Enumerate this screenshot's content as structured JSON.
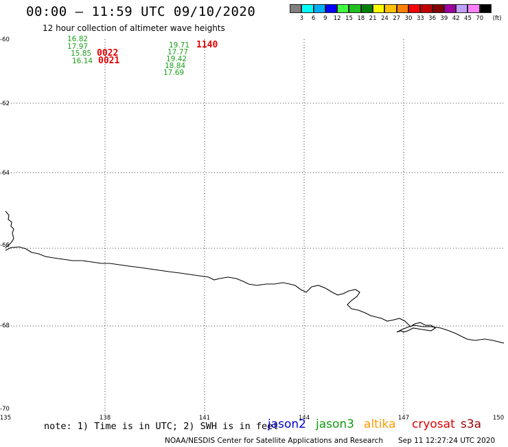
{
  "header": {
    "title": "00:00 – 11:59 UTC 09/10/2020",
    "subtitle": "12 hour collection of altimeter wave heights"
  },
  "colorbar": {
    "colors": [
      "#808080",
      "#00ffff",
      "#00b0ff",
      "#0000ff",
      "#40ff40",
      "#20c020",
      "#008000",
      "#ffff00",
      "#ffc000",
      "#ff8000",
      "#ff0000",
      "#c00000",
      "#800000",
      "#a000a0",
      "#c0a0ff",
      "#ff80ff",
      "#000000"
    ],
    "labels": [
      "3",
      "6",
      "9",
      "12",
      "15",
      "18",
      "21",
      "24",
      "27",
      "30",
      "33",
      "36",
      "39",
      "42",
      "45",
      "70",
      "(ft)"
    ]
  },
  "map": {
    "lat_labels": [
      "-60",
      "-62",
      "-64",
      "-66",
      "-68",
      "-70"
    ],
    "lon_labels": [
      "135",
      "138",
      "141",
      "144",
      "147",
      "150"
    ],
    "lat_range": [
      -70,
      -60
    ],
    "lon_range": [
      135,
      150
    ]
  },
  "observations": {
    "group1": [
      "16.82",
      "17.97",
      "15.85",
      "16.14"
    ],
    "group2": [
      "19.71",
      "17.77",
      "19.42",
      "18.84",
      "17.69"
    ],
    "time1a": "0022",
    "time1b": "0021",
    "time2": "1140"
  },
  "footer": {
    "note": "note: 1) Time is in UTC; 2) SWH is in feet",
    "legend": [
      {
        "label": "jason2",
        "color": "#0000cc"
      },
      {
        "label": "jason3",
        "color": "#119911"
      },
      {
        "label": "altika",
        "color": "#ff9900"
      },
      {
        "label": "cryosat",
        "color": "#dd0000"
      },
      {
        "label": "s3a",
        "color": "#990000"
      }
    ],
    "credit": "NOAA/NESDIS Center for Satellite Applications and Research",
    "timestamp": "Sep 11 12:27:24 UTC 2020"
  }
}
